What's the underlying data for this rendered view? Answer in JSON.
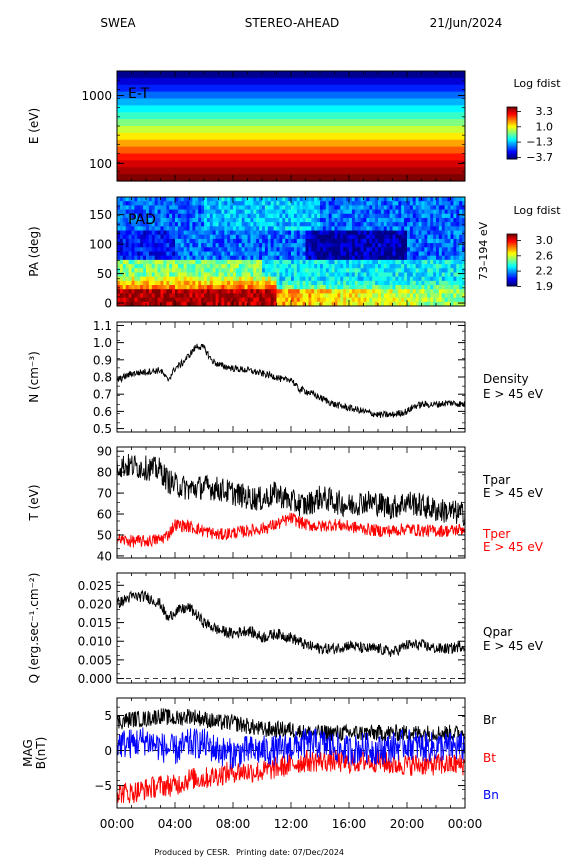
{
  "header": {
    "instrument": "SWEA",
    "spacecraft": "STEREO-AHEAD",
    "date": "21/Jun/2024"
  },
  "footer": {
    "credit": "Produced by CESR.",
    "printing": "Printing date: 07/Dec/2024"
  },
  "colors": {
    "black": "#000000",
    "red": "#ff0000",
    "blue": "#0000ff"
  },
  "x_axis": {
    "ticks": [
      "00:00",
      "04:00",
      "08:00",
      "12:00",
      "16:00",
      "20:00",
      "00:00"
    ],
    "range_hours": [
      0,
      24
    ]
  },
  "chart_data": [
    {
      "type": "heatmap",
      "id": "et",
      "label": "E-T",
      "ylabel": "E (eV)",
      "yscale": "log",
      "ylim": [
        55,
        2300
      ],
      "yticks": [
        {
          "v": 1000,
          "t": "1000"
        },
        {
          "v": 100,
          "t": "100"
        }
      ],
      "colorbar": {
        "title": "Log fdist",
        "ticks": [
          "3.3",
          "1.0",
          "−1.3",
          "−3.7"
        ]
      },
      "bands_log_fdist_top_to_bottom": [
        -3.6,
        -3.1,
        -2.6,
        -2.1,
        -1.6,
        -1.1,
        -0.7,
        -0.2,
        0.3,
        0.8,
        1.3,
        1.8,
        2.3,
        2.7,
        3.0,
        3.3
      ]
    },
    {
      "type": "heatmap",
      "id": "pad",
      "label": "PAD",
      "ylabel": "PA (deg)",
      "ylim": [
        -5,
        180
      ],
      "yticks": [
        {
          "v": 150,
          "t": "150"
        },
        {
          "v": 100,
          "t": "100"
        },
        {
          "v": 50,
          "t": "50"
        },
        {
          "v": 0,
          "t": "0"
        }
      ],
      "right_label": "73–194 eV",
      "colorbar": {
        "title": "Log fdist",
        "ticks": [
          "3.0",
          "2.6",
          "2.2",
          "1.9"
        ]
      }
    },
    {
      "type": "line",
      "id": "density",
      "ylabel": "N (cm⁻³)",
      "ylim": [
        0.48,
        1.12
      ],
      "yticks": [
        {
          "v": 1.1,
          "t": "1.1"
        },
        {
          "v": 1.0,
          "t": "1.0"
        },
        {
          "v": 0.9,
          "t": "0.9"
        },
        {
          "v": 0.8,
          "t": "0.8"
        },
        {
          "v": 0.7,
          "t": "0.7"
        },
        {
          "v": 0.6,
          "t": "0.6"
        },
        {
          "v": 0.5,
          "t": "0.5"
        }
      ],
      "labels": [
        {
          "text": "Density",
          "color": "#000000"
        },
        {
          "text": "E > 45 eV",
          "color": "#000000"
        }
      ],
      "series": [
        {
          "color": "#000000",
          "noise": 0.02,
          "x": [
            0,
            0.5,
            1,
            2,
            3,
            3.5,
            4,
            4.5,
            5,
            5.5,
            6,
            6.5,
            7,
            8,
            9,
            10,
            11,
            11.5,
            12,
            12.5,
            13,
            14,
            15,
            16,
            17,
            18,
            19,
            20,
            20.5,
            21,
            22,
            23,
            24
          ],
          "y": [
            0.78,
            0.8,
            0.82,
            0.83,
            0.84,
            0.78,
            0.85,
            0.88,
            0.93,
            0.98,
            0.97,
            0.9,
            0.87,
            0.85,
            0.84,
            0.82,
            0.8,
            0.78,
            0.79,
            0.73,
            0.72,
            0.68,
            0.64,
            0.62,
            0.6,
            0.58,
            0.58,
            0.6,
            0.63,
            0.64,
            0.64,
            0.65,
            0.64
          ]
        }
      ]
    },
    {
      "type": "line",
      "id": "temperature",
      "ylabel": "T (eV)",
      "ylim": [
        39,
        92
      ],
      "yticks": [
        {
          "v": 90,
          "t": "90"
        },
        {
          "v": 80,
          "t": "80"
        },
        {
          "v": 70,
          "t": "70"
        },
        {
          "v": 60,
          "t": "60"
        },
        {
          "v": 50,
          "t": "50"
        },
        {
          "v": 40,
          "t": "40"
        }
      ],
      "labels": [
        {
          "text": "Tpar",
          "color": "#000000"
        },
        {
          "text": "E > 45 eV",
          "color": "#000000"
        },
        {
          "text": "Tper",
          "color": "#ff0000"
        },
        {
          "text": "E > 45 eV",
          "color": "#ff0000"
        }
      ],
      "series": [
        {
          "name": "Tpar",
          "color": "#000000",
          "noise": 6,
          "x": [
            0,
            1,
            2,
            3,
            3.5,
            4,
            5,
            6,
            7,
            8,
            9,
            10,
            11,
            12,
            13,
            14,
            15,
            16,
            17,
            18,
            19,
            20,
            21,
            22,
            23,
            24
          ],
          "y": [
            83,
            83,
            82,
            81,
            76,
            74,
            72,
            73,
            72,
            70,
            68,
            67,
            70,
            66,
            64,
            68,
            66,
            64,
            66,
            65,
            63,
            66,
            64,
            62,
            61,
            60
          ]
        },
        {
          "name": "Tper",
          "color": "#ff0000",
          "noise": 3,
          "x": [
            0,
            1,
            2,
            3,
            3.5,
            4,
            5,
            6,
            7,
            8,
            9,
            10,
            11,
            12,
            13,
            14,
            15,
            16,
            17,
            18,
            19,
            20,
            21,
            22,
            23,
            24
          ],
          "y": [
            48,
            47,
            47,
            48,
            50,
            55,
            54,
            52,
            50,
            51,
            52,
            53,
            55,
            58,
            55,
            54,
            55,
            54,
            53,
            52,
            52,
            53,
            52,
            52,
            52,
            53
          ]
        }
      ]
    },
    {
      "type": "line",
      "id": "heatflux",
      "ylabel": "Q (erg.sec⁻¹.cm⁻²)",
      "ylim": [
        -0.0012,
        0.0283
      ],
      "yticks": [
        {
          "v": 0.025,
          "t": "0.025"
        },
        {
          "v": 0.02,
          "t": "0.020"
        },
        {
          "v": 0.015,
          "t": "0.015"
        },
        {
          "v": 0.01,
          "t": "0.010"
        },
        {
          "v": 0.005,
          "t": "0.005"
        },
        {
          "v": 0.0,
          "t": "0.000"
        }
      ],
      "zero_line": 0,
      "labels": [
        {
          "text": "Qpar",
          "color": "#000000"
        },
        {
          "text": "E > 45 eV",
          "color": "#000000"
        }
      ],
      "series": [
        {
          "color": "#000000",
          "noise": 0.0015,
          "x": [
            0,
            1,
            2,
            3,
            3.5,
            4,
            5,
            6,
            7,
            8,
            9,
            10,
            11,
            12,
            13,
            14,
            15,
            16,
            17,
            18,
            19,
            20,
            21,
            22,
            23,
            24
          ],
          "y": [
            0.02,
            0.022,
            0.022,
            0.02,
            0.016,
            0.018,
            0.019,
            0.015,
            0.013,
            0.012,
            0.013,
            0.011,
            0.012,
            0.011,
            0.009,
            0.008,
            0.008,
            0.009,
            0.008,
            0.008,
            0.007,
            0.009,
            0.009,
            0.008,
            0.008,
            0.009
          ]
        }
      ]
    },
    {
      "type": "line",
      "id": "mag",
      "ylabel": "MAG\nB(nT)",
      "ylim": [
        -8.2,
        7.5
      ],
      "yticks": [
        {
          "v": 5,
          "t": "5"
        },
        {
          "v": 0,
          "t": "0"
        },
        {
          "v": -5,
          "t": "−5"
        }
      ],
      "zero_line": 0,
      "labels": [
        {
          "text": "Br",
          "color": "#000000"
        },
        {
          "text": "Bt",
          "color": "#ff0000"
        },
        {
          "text": "Bn",
          "color": "#0000ff"
        }
      ],
      "series": [
        {
          "name": "Br",
          "color": "#000000",
          "noise": 1.2,
          "x": [
            0,
            1,
            2,
            3,
            4,
            5,
            6,
            7,
            8,
            9,
            10,
            11,
            12,
            13,
            14,
            15,
            16,
            17,
            18,
            19,
            20,
            21,
            22,
            23,
            24
          ],
          "y": [
            4,
            4.5,
            4.5,
            5,
            4.5,
            5,
            4.5,
            4,
            4,
            3.5,
            3,
            3,
            3,
            2.5,
            2.5,
            2.5,
            2.5,
            2.5,
            2.5,
            2.5,
            2.5,
            2.5,
            2.5,
            2.5,
            2.5
          ]
        },
        {
          "name": "Bt",
          "color": "#ff0000",
          "noise": 1.6,
          "x": [
            0,
            1,
            2,
            3,
            4,
            5,
            6,
            7,
            8,
            9,
            10,
            11,
            12,
            13,
            14,
            15,
            16,
            17,
            18,
            19,
            20,
            21,
            22,
            23,
            24
          ],
          "y": [
            -6,
            -6,
            -5.5,
            -5,
            -5,
            -4,
            -4,
            -3.5,
            -3,
            -3,
            -3,
            -2.5,
            -2,
            -1.5,
            -1.5,
            -1.5,
            -1.8,
            -1.5,
            -1.5,
            -2,
            -2,
            -2,
            -2,
            -2,
            -2
          ]
        },
        {
          "name": "Bn",
          "color": "#0000ff",
          "noise": 2.2,
          "x": [
            0,
            1,
            2,
            3,
            4,
            5,
            6,
            7,
            8,
            9,
            10,
            11,
            12,
            13,
            14,
            15,
            16,
            17,
            18,
            19,
            20,
            21,
            22,
            23,
            24
          ],
          "y": [
            1,
            1,
            1.5,
            0.5,
            0,
            1,
            1,
            0,
            -0.5,
            0,
            0,
            0,
            0.5,
            1,
            1,
            0.5,
            0,
            0.5,
            0,
            0.5,
            1,
            0.5,
            0.5,
            0.5,
            0.5
          ]
        }
      ]
    }
  ]
}
